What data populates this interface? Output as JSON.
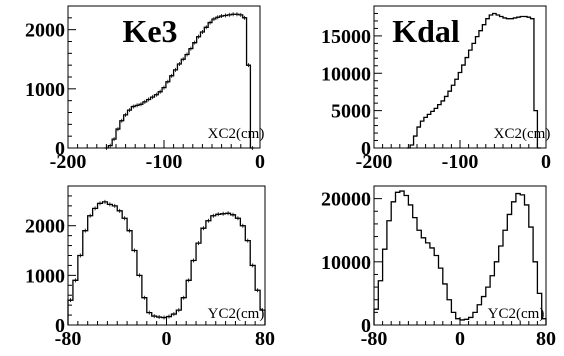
{
  "chart_data": [
    {
      "type": "line",
      "title": "Ke3",
      "xlabel": "XC2(cm)",
      "ylabel": "",
      "xlim": [
        -200,
        0
      ],
      "ylim": [
        0,
        2400
      ],
      "x_ticks": [
        -200,
        -100,
        0
      ],
      "y_ticks": [
        0,
        1000,
        2000
      ],
      "x_tick_labels": [
        "-200",
        "-100",
        "0"
      ],
      "y_tick_labels": [
        "0",
        "1000",
        "2000"
      ],
      "series": [
        {
          "style": "step histogram with error-bar markers",
          "x": [
            -160,
            -156,
            -152,
            -148,
            -144,
            -140,
            -136,
            -132,
            -128,
            -124,
            -120,
            -116,
            -112,
            -108,
            -104,
            -100,
            -96,
            -92,
            -88,
            -84,
            -80,
            -76,
            -72,
            -68,
            -64,
            -60,
            -56,
            -52,
            -48,
            -44,
            -40,
            -36,
            -32,
            -28,
            -24,
            -20,
            -16,
            -12,
            -8
          ],
          "y": [
            0,
            40,
            150,
            320,
            460,
            560,
            640,
            700,
            720,
            740,
            780,
            820,
            860,
            900,
            950,
            1020,
            1120,
            1220,
            1320,
            1420,
            1500,
            1580,
            1680,
            1780,
            1880,
            1960,
            2040,
            2120,
            2180,
            2210,
            2230,
            2240,
            2250,
            2260,
            2260,
            2250,
            2200,
            1400,
            0
          ]
        }
      ]
    },
    {
      "type": "line",
      "title": "Kdal",
      "xlabel": "XC2(cm)",
      "ylabel": "",
      "xlim": [
        -200,
        0
      ],
      "ylim": [
        0,
        19000
      ],
      "x_ticks": [
        -200,
        -100,
        0
      ],
      "y_ticks": [
        0,
        5000,
        10000,
        15000
      ],
      "x_tick_labels": [
        "-200",
        "-100",
        "0"
      ],
      "y_tick_labels": [
        "0",
        "5000",
        "10000",
        "15000"
      ],
      "series": [
        {
          "style": "step histogram",
          "x": [
            -160,
            -156,
            -152,
            -148,
            -144,
            -140,
            -136,
            -132,
            -128,
            -124,
            -120,
            -116,
            -112,
            -108,
            -104,
            -100,
            -96,
            -92,
            -88,
            -84,
            -80,
            -76,
            -72,
            -68,
            -64,
            -60,
            -56,
            -52,
            -48,
            -44,
            -40,
            -36,
            -32,
            -28,
            -24,
            -20,
            -16,
            -12,
            -8
          ],
          "y": [
            0,
            400,
            1600,
            2800,
            3600,
            4100,
            4500,
            4900,
            5300,
            5800,
            6300,
            6900,
            7600,
            8400,
            9200,
            10100,
            11100,
            12100,
            13100,
            14000,
            14900,
            15700,
            16500,
            17300,
            17800,
            18000,
            17800,
            17600,
            17400,
            17300,
            17300,
            17400,
            17500,
            17600,
            17600,
            17500,
            17300,
            5000,
            0
          ]
        }
      ]
    },
    {
      "type": "line",
      "title": "",
      "xlabel": "YC2(cm)",
      "ylabel": "",
      "xlim": [
        -80,
        80
      ],
      "ylim": [
        0,
        2800
      ],
      "x_ticks": [
        -80,
        0,
        80
      ],
      "y_ticks": [
        0,
        1000,
        2000
      ],
      "x_tick_labels": [
        "-80",
        "0",
        "80"
      ],
      "y_tick_labels": [
        "0",
        "1000",
        "2000"
      ],
      "series": [
        {
          "style": "step histogram with error-bar markers",
          "x": [
            -78,
            -74,
            -70,
            -66,
            -62,
            -58,
            -54,
            -50,
            -46,
            -42,
            -38,
            -34,
            -30,
            -26,
            -22,
            -18,
            -14,
            -10,
            -6,
            -2,
            2,
            6,
            10,
            14,
            18,
            22,
            26,
            30,
            34,
            38,
            42,
            46,
            50,
            54,
            58,
            62,
            66,
            70,
            74,
            78
          ],
          "y": [
            500,
            900,
            1400,
            1900,
            2200,
            2350,
            2450,
            2480,
            2430,
            2400,
            2300,
            2150,
            1900,
            1500,
            1000,
            550,
            250,
            180,
            160,
            150,
            170,
            220,
            300,
            550,
            900,
            1300,
            1650,
            1950,
            2100,
            2200,
            2230,
            2240,
            2250,
            2220,
            2150,
            2000,
            1700,
            1200,
            700,
            300
          ]
        }
      ]
    },
    {
      "type": "line",
      "title": "",
      "xlabel": "YC2(cm)",
      "ylabel": "",
      "xlim": [
        -80,
        80
      ],
      "ylim": [
        0,
        22000
      ],
      "x_ticks": [
        -80,
        0,
        80
      ],
      "y_ticks": [
        0,
        10000,
        20000
      ],
      "x_tick_labels": [
        "-80",
        "0",
        "80"
      ],
      "y_tick_labels": [
        "0",
        "10000",
        "20000"
      ],
      "series": [
        {
          "style": "step histogram",
          "x": [
            -78,
            -74,
            -70,
            -66,
            -62,
            -58,
            -54,
            -50,
            -46,
            -42,
            -38,
            -34,
            -30,
            -26,
            -22,
            -18,
            -14,
            -10,
            -6,
            -2,
            2,
            6,
            10,
            14,
            18,
            22,
            26,
            30,
            34,
            38,
            42,
            46,
            50,
            54,
            58,
            62,
            66,
            70,
            74,
            78
          ],
          "y": [
            2500,
            7000,
            12000,
            16500,
            19500,
            21000,
            21200,
            20500,
            19000,
            17000,
            15000,
            13800,
            13000,
            12200,
            11000,
            9000,
            6500,
            4000,
            2000,
            1000,
            800,
            900,
            1200,
            2000,
            3200,
            4500,
            6000,
            7800,
            10000,
            12500,
            15000,
            17500,
            19500,
            20800,
            20600,
            19000,
            15500,
            10000,
            5000,
            1000
          ]
        }
      ]
    }
  ]
}
